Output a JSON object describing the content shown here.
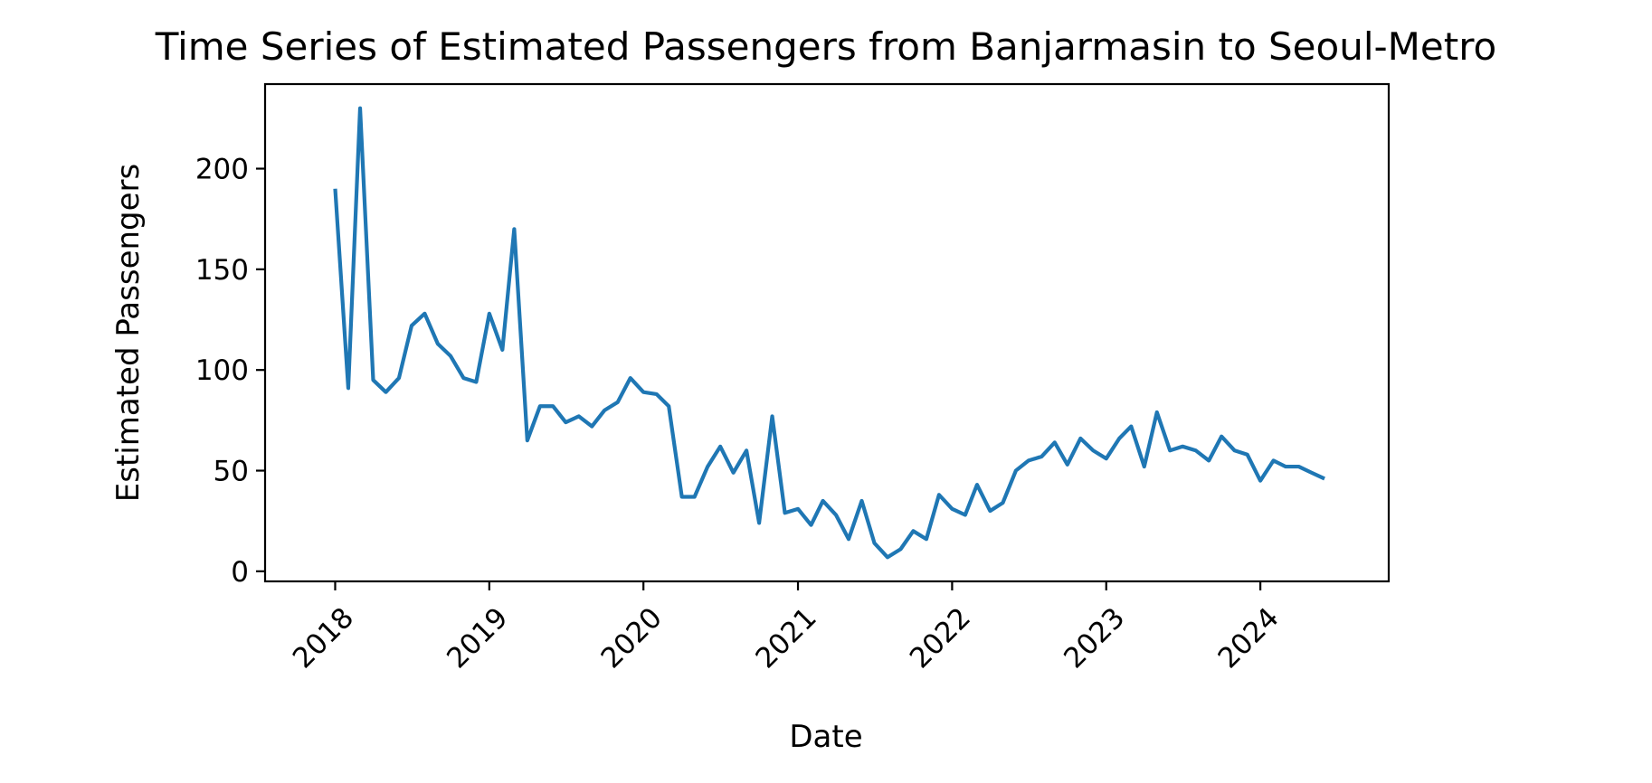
{
  "chart_data": {
    "type": "line",
    "title": "Time Series of Estimated Passengers from Banjarmasin to Seoul-Metro",
    "xlabel": "Date",
    "ylabel": "Estimated Passengers",
    "x_scale": "time",
    "xlim": [
      "2017-07-19",
      "2024-10-31"
    ],
    "ylim": [
      -5,
      242
    ],
    "x_ticks": [
      {
        "value": "2018-01-01",
        "label": "2018"
      },
      {
        "value": "2019-01-01",
        "label": "2019"
      },
      {
        "value": "2020-01-01",
        "label": "2020"
      },
      {
        "value": "2021-01-01",
        "label": "2021"
      },
      {
        "value": "2022-01-01",
        "label": "2022"
      },
      {
        "value": "2023-01-01",
        "label": "2023"
      },
      {
        "value": "2024-01-01",
        "label": "2024"
      }
    ],
    "y_ticks": [
      0,
      50,
      100,
      150,
      200
    ],
    "grid": false,
    "legend": "none",
    "series": [
      {
        "color": "#1f77b4",
        "x": [
          "2018-01-01",
          "2018-02-01",
          "2018-03-01",
          "2018-04-01",
          "2018-05-01",
          "2018-06-01",
          "2018-07-01",
          "2018-08-01",
          "2018-09-01",
          "2018-10-01",
          "2018-11-01",
          "2018-12-01",
          "2019-01-01",
          "2019-02-01",
          "2019-03-01",
          "2019-04-01",
          "2019-05-01",
          "2019-06-01",
          "2019-07-01",
          "2019-08-01",
          "2019-09-01",
          "2019-10-01",
          "2019-11-01",
          "2019-12-01",
          "2020-01-01",
          "2020-02-01",
          "2020-03-01",
          "2020-04-01",
          "2020-05-01",
          "2020-06-01",
          "2020-07-01",
          "2020-08-01",
          "2020-09-01",
          "2020-10-01",
          "2020-11-01",
          "2020-12-01",
          "2021-01-01",
          "2021-02-01",
          "2021-03-01",
          "2021-04-01",
          "2021-05-01",
          "2021-06-01",
          "2021-07-01",
          "2021-08-01",
          "2021-09-01",
          "2021-10-01",
          "2021-11-01",
          "2021-12-01",
          "2022-01-01",
          "2022-02-01",
          "2022-03-01",
          "2022-04-01",
          "2022-05-01",
          "2022-06-01",
          "2022-07-01",
          "2022-08-01",
          "2022-09-01",
          "2022-10-01",
          "2022-11-01",
          "2022-12-01",
          "2023-01-01",
          "2023-02-01",
          "2023-03-01",
          "2023-04-01",
          "2023-05-01",
          "2023-06-01",
          "2023-07-01",
          "2023-08-01",
          "2023-09-01",
          "2023-10-01",
          "2023-11-01",
          "2023-12-01",
          "2024-01-01",
          "2024-02-01",
          "2024-03-01",
          "2024-04-01",
          "2024-05-01",
          "2024-06-01"
        ],
        "values": [
          190,
          91,
          230,
          95,
          89,
          96,
          122,
          128,
          113,
          107,
          96,
          94,
          128,
          110,
          170,
          65,
          82,
          82,
          74,
          77,
          72,
          80,
          84,
          96,
          89,
          88,
          82,
          37,
          37,
          52,
          62,
          49,
          60,
          24,
          77,
          29,
          31,
          23,
          35,
          28,
          16,
          35,
          14,
          7,
          11,
          20,
          16,
          38,
          31,
          28,
          43,
          30,
          34,
          50,
          55,
          57,
          64,
          53,
          66,
          60,
          56,
          66,
          72,
          52,
          79,
          60,
          62,
          60,
          55,
          67,
          60,
          58,
          45,
          55,
          52,
          52,
          49,
          46
        ]
      }
    ]
  }
}
